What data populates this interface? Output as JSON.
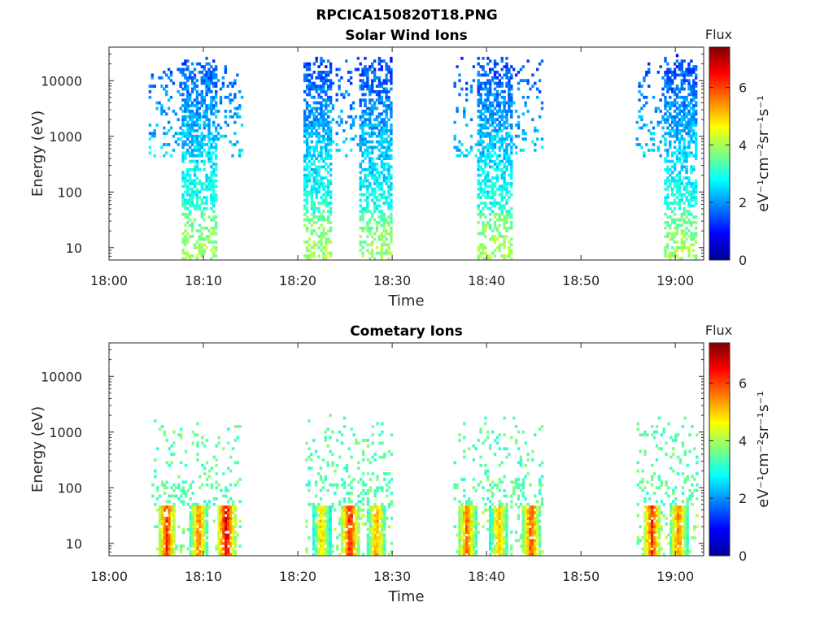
{
  "figure_title": "RPCICA150820T18.PNG",
  "chart_data": [
    {
      "type": "heatmap",
      "title": "Solar Wind Ions",
      "xlabel": "Time",
      "ylabel": "Energy (eV)",
      "x_ticks": [
        "18:00",
        "18:10",
        "18:20",
        "18:30",
        "18:40",
        "18:50",
        "19:00"
      ],
      "x_tick_minutes": [
        0,
        10,
        20,
        30,
        40,
        50,
        60
      ],
      "xlim_minutes": [
        0,
        63
      ],
      "y_scale": "log",
      "ylim": [
        6,
        40000
      ],
      "y_ticks": [
        10,
        100,
        1000,
        10000
      ],
      "y_tick_labels": [
        "10",
        "100",
        "1000",
        "10000"
      ],
      "colorbar": {
        "title": "Flux",
        "label": "eV⁻¹cm⁻²sr⁻¹s⁻¹",
        "ticks": [
          0,
          2,
          4,
          6
        ],
        "range": [
          0,
          7.4
        ],
        "colormap": "jet"
      },
      "bursts": [
        {
          "start_min": 4.2,
          "end_min": 14.0,
          "core_start_min": 7.5,
          "core_end_min": 11.2,
          "flux_low_energy": 3.6,
          "flux_high_energy": 1.4
        },
        {
          "start_min": 20.6,
          "end_min": 23.8,
          "core_start_min": 20.6,
          "core_end_min": 23.5,
          "flux_low_energy": 3.6,
          "flux_high_energy": 1.3
        },
        {
          "start_min": 24.0,
          "end_min": 30.0,
          "core_start_min": 26.3,
          "core_end_min": 29.8,
          "flux_low_energy": 3.5,
          "flux_high_energy": 1.3
        },
        {
          "start_min": 36.5,
          "end_min": 45.8,
          "core_start_min": 39.0,
          "core_end_min": 42.5,
          "flux_low_energy": 3.6,
          "flux_high_energy": 1.3
        },
        {
          "start_min": 55.8,
          "end_min": 62.3,
          "core_start_min": 58.8,
          "core_end_min": 62.2,
          "flux_low_energy": 3.6,
          "flux_high_energy": 1.3
        }
      ]
    },
    {
      "type": "heatmap",
      "title": "Cometary Ions",
      "xlabel": "Time",
      "ylabel": "Energy (eV)",
      "x_ticks": [
        "18:00",
        "18:10",
        "18:20",
        "18:30",
        "18:40",
        "18:50",
        "19:00"
      ],
      "x_tick_minutes": [
        0,
        10,
        20,
        30,
        40,
        50,
        60
      ],
      "xlim_minutes": [
        0,
        63
      ],
      "y_scale": "log",
      "ylim": [
        6,
        40000
      ],
      "y_ticks": [
        10,
        100,
        1000,
        10000
      ],
      "y_tick_labels": [
        "10",
        "100",
        "1000",
        "10000"
      ],
      "colorbar": {
        "title": "Flux",
        "label": "eV⁻¹cm⁻²sr⁻¹s⁻¹",
        "ticks": [
          0,
          2,
          4,
          6
        ],
        "range": [
          0,
          7.4
        ],
        "colormap": "jet"
      },
      "bursts": [
        {
          "start_min": 4.5,
          "end_min": 13.8,
          "peaks": [
            {
              "min": 6.0,
              "flux": 6.2
            },
            {
              "min": 9.4,
              "flux": 5.6
            },
            {
              "min": 12.3,
              "flux": 6.8
            }
          ]
        },
        {
          "start_min": 20.8,
          "end_min": 30.0,
          "peaks": [
            {
              "min": 22.4,
              "flux": 5.0
            },
            {
              "min": 25.4,
              "flux": 6.4
            },
            {
              "min": 28.2,
              "flux": 5.4
            }
          ]
        },
        {
          "start_min": 36.5,
          "end_min": 45.9,
          "peaks": [
            {
              "min": 37.8,
              "flux": 5.8
            },
            {
              "min": 41.2,
              "flux": 5.2
            },
            {
              "min": 44.6,
              "flux": 6.0
            }
          ]
        },
        {
          "start_min": 55.9,
          "end_min": 62.2,
          "peaks": [
            {
              "min": 57.4,
              "flux": 6.2
            },
            {
              "min": 60.2,
              "flux": 5.6
            }
          ]
        }
      ]
    }
  ]
}
